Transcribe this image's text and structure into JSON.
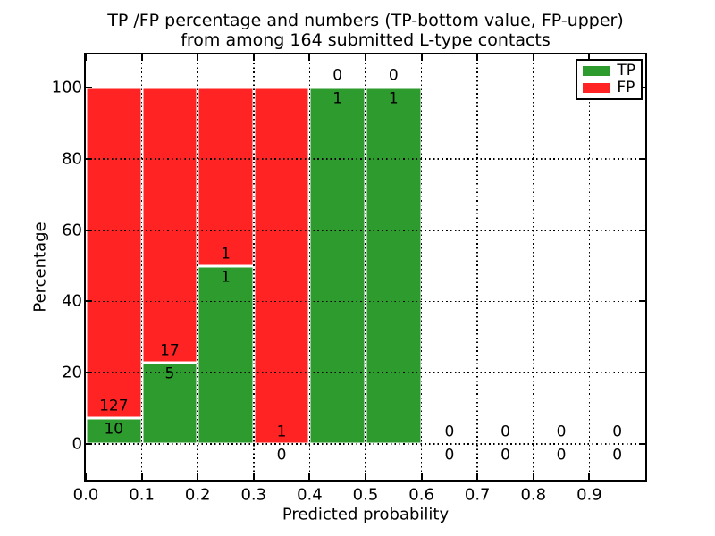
{
  "chart_data": {
    "type": "bar",
    "stacked": true,
    "percentage_normalized": true,
    "title_line1": "TP /FP percentage and numbers (TP-bottom value, FP-upper)",
    "title_line2": "from among 164 submitted L-type contacts",
    "xlabel": "Predicted probability",
    "ylabel": "Percentage",
    "xlim": [
      0.0,
      1.0
    ],
    "ylim_display": [
      -10.1,
      109.4
    ],
    "grid_style": "dotted",
    "x_tick_values": [
      0.0,
      0.1,
      0.2,
      0.3,
      0.4,
      0.5,
      0.6,
      0.7,
      0.8,
      0.9
    ],
    "x_tick_labels": [
      "0.0",
      "0.1",
      "0.2",
      "0.3",
      "0.4",
      "0.5",
      "0.6",
      "0.7",
      "0.8",
      "0.9"
    ],
    "y_tick_values": [
      0,
      20,
      40,
      60,
      80,
      100
    ],
    "y_tick_labels": [
      "0",
      "20",
      "40",
      "60",
      "80",
      "100"
    ],
    "legend": {
      "position": "upper right",
      "items": [
        {
          "label": "TP",
          "color": "#2d9b2d"
        },
        {
          "label": "FP",
          "color": "#ff2323"
        }
      ]
    },
    "colors": {
      "tp": "#2d9b2d",
      "fp": "#ff2323",
      "bar_edge": "#ffffff",
      "grid": "#000000",
      "text": "#000000"
    },
    "bins": [
      {
        "x_start": 0.0,
        "x_end": 0.1,
        "tp": 10,
        "fp": 127
      },
      {
        "x_start": 0.1,
        "x_end": 0.2,
        "tp": 5,
        "fp": 17
      },
      {
        "x_start": 0.2,
        "x_end": 0.3,
        "tp": 1,
        "fp": 1
      },
      {
        "x_start": 0.3,
        "x_end": 0.4,
        "tp": 0,
        "fp": 1
      },
      {
        "x_start": 0.4,
        "x_end": 0.5,
        "tp": 1,
        "fp": 0
      },
      {
        "x_start": 0.5,
        "x_end": 0.6,
        "tp": 1,
        "fp": 0
      },
      {
        "x_start": 0.6,
        "x_end": 0.7,
        "tp": 0,
        "fp": 0
      },
      {
        "x_start": 0.7,
        "x_end": 0.8,
        "tp": 0,
        "fp": 0
      },
      {
        "x_start": 0.8,
        "x_end": 0.9,
        "tp": 0,
        "fp": 0
      },
      {
        "x_start": 0.9,
        "x_end": 1.0,
        "tp": 0,
        "fp": 0
      }
    ]
  }
}
